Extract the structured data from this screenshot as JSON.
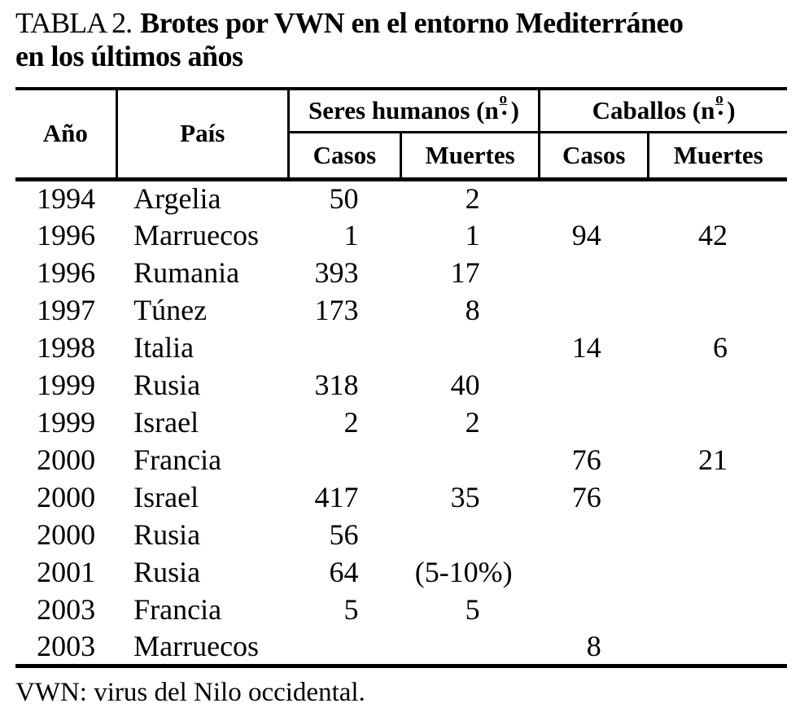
{
  "title": {
    "label": "TABLA 2.",
    "line1": "Brotes por VWN en el entorno Mediterráneo",
    "line2": "en los últimos años"
  },
  "table": {
    "header": {
      "year": "Año",
      "country": "País",
      "humans_group": {
        "text": "Seres humanos (n",
        "ordinal": "o",
        "dot": ".",
        "close": ")"
      },
      "horses_group": {
        "text": "Caballos (n",
        "ordinal": "o",
        "dot": ".",
        "close": ")"
      },
      "sub": {
        "human_cases": "Casos",
        "human_deaths": "Muertes",
        "horse_cases": "Casos",
        "horse_deaths": "Muertes"
      }
    },
    "rows": [
      {
        "year": "1994",
        "country": "Argelia",
        "human_cases": "50",
        "human_deaths": "2",
        "horse_cases": "",
        "horse_deaths": ""
      },
      {
        "year": "1996",
        "country": "Marruecos",
        "human_cases": "1",
        "human_deaths": "1",
        "horse_cases": "94",
        "horse_deaths": "42"
      },
      {
        "year": "1996",
        "country": "Rumania",
        "human_cases": "393",
        "human_deaths": "17",
        "horse_cases": "",
        "horse_deaths": ""
      },
      {
        "year": "1997",
        "country": "Túnez",
        "human_cases": "173",
        "human_deaths": "8",
        "horse_cases": "",
        "horse_deaths": ""
      },
      {
        "year": "1998",
        "country": "Italia",
        "human_cases": "",
        "human_deaths": "",
        "horse_cases": "14",
        "horse_deaths": "6"
      },
      {
        "year": "1999",
        "country": "Rusia",
        "human_cases": "318",
        "human_deaths": "40",
        "horse_cases": "",
        "horse_deaths": ""
      },
      {
        "year": "1999",
        "country": "Israel",
        "human_cases": "2",
        "human_deaths": "2",
        "horse_cases": "",
        "horse_deaths": ""
      },
      {
        "year": "2000",
        "country": "Francia",
        "human_cases": "",
        "human_deaths": "",
        "horse_cases": "76",
        "horse_deaths": "21"
      },
      {
        "year": "2000",
        "country": "Israel",
        "human_cases": "417",
        "human_deaths": "35",
        "horse_cases": "76",
        "horse_deaths": ""
      },
      {
        "year": "2000",
        "country": "Rusia",
        "human_cases": "56",
        "human_deaths": "",
        "horse_cases": "",
        "horse_deaths": ""
      },
      {
        "year": "2001",
        "country": "Rusia",
        "human_cases": "64",
        "human_deaths": "(5-10%)",
        "horse_cases": "",
        "horse_deaths": ""
      },
      {
        "year": "2003",
        "country": "Francia",
        "human_cases": "5",
        "human_deaths": "5",
        "horse_cases": "",
        "horse_deaths": ""
      },
      {
        "year": "2003",
        "country": "Marruecos",
        "human_cases": "",
        "human_deaths": "",
        "horse_cases": "8",
        "horse_deaths": ""
      }
    ]
  },
  "footnote": "VWN: virus del Nilo occidental."
}
